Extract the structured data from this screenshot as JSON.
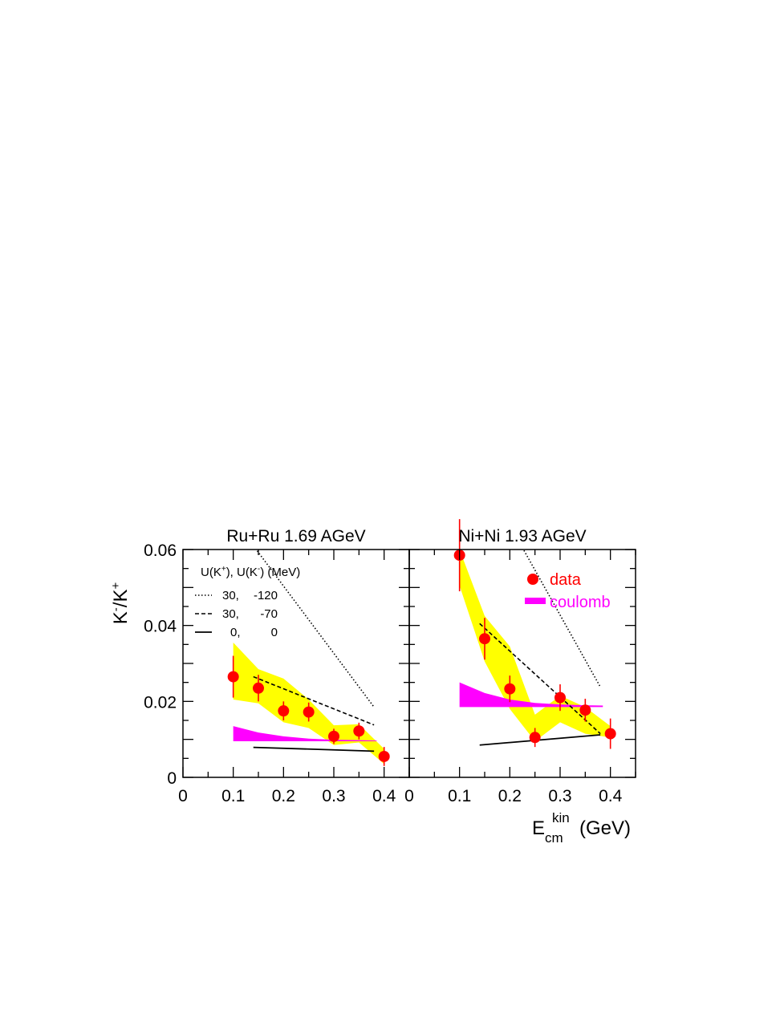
{
  "figure": {
    "ylabel": {
      "base": "K",
      "sup1": "-",
      "mid": "/K",
      "sup2": "+"
    },
    "xlabel": {
      "base": "E",
      "sub": "cm",
      "sup": "kin",
      "unit": "(GeV)"
    },
    "legend_header": {
      "p1": "U(K",
      "s1": "+",
      "p2": "), U(K",
      "s2": "-",
      "p3": ") (MeV)"
    },
    "legend_entries": [
      {
        "style": "dotted",
        "a": "30,",
        "b": "-120"
      },
      {
        "style": "dashed",
        "a": "30,",
        "b": "-70"
      },
      {
        "style": "solid",
        "a": "0,",
        "b": "0"
      }
    ],
    "legend_data_label": "data",
    "legend_coulomb_label": "coulomb"
  },
  "colors": {
    "data": "#ff0000",
    "band": "#ffff00",
    "coulomb": "#ff00ff",
    "axis": "#000000"
  },
  "chart_data": [
    {
      "type": "scatter",
      "title": "Ru+Ru 1.69 AGeV",
      "xlim": [
        0,
        0.45
      ],
      "ylim": [
        0,
        0.06
      ],
      "xticks": [
        0,
        0.1,
        0.2,
        0.3,
        0.4
      ],
      "xtick_labels": [
        "0",
        "0.1",
        "0.2",
        "0.3",
        "0.4"
      ],
      "yticks": [
        0,
        0.02,
        0.04,
        0.06
      ],
      "ytick_labels": [
        "0",
        "0.02",
        "0.04",
        "0.06"
      ],
      "series": [
        {
          "name": "data",
          "x": [
            0.1,
            0.15,
            0.2,
            0.25,
            0.3,
            0.35,
            0.4
          ],
          "y": [
            0.0265,
            0.0235,
            0.0175,
            0.0172,
            0.0108,
            0.0122,
            0.0055
          ],
          "err": [
            0.0055,
            0.0035,
            0.0025,
            0.0025,
            0.002,
            0.0022,
            0.0025
          ]
        },
        {
          "name": "30, -120",
          "style": "dotted",
          "x": [
            0.14,
            0.38
          ],
          "y": [
            0.061,
            0.0185
          ]
        },
        {
          "name": "30, -70",
          "style": "dashed",
          "x": [
            0.14,
            0.38
          ],
          "y": [
            0.0265,
            0.0138
          ]
        },
        {
          "name": "0, 0",
          "style": "solid",
          "x": [
            0.14,
            0.38
          ],
          "y": [
            0.0079,
            0.0069
          ]
        }
      ],
      "band": {
        "name": "systematic",
        "x": [
          0.1,
          0.15,
          0.2,
          0.25,
          0.3,
          0.35,
          0.4
        ],
        "upper": [
          0.0355,
          0.0285,
          0.026,
          0.0205,
          0.0137,
          0.014,
          0.0075
        ],
        "lower": [
          0.0205,
          0.0195,
          0.0145,
          0.013,
          0.0085,
          0.0092,
          0.0035
        ]
      },
      "coulomb": {
        "x": [
          0.1,
          0.15,
          0.2,
          0.25,
          0.3,
          0.35,
          0.385
        ],
        "upper": [
          0.0135,
          0.0118,
          0.0108,
          0.0102,
          0.0099,
          0.0098,
          0.0097
        ],
        "lower": [
          0.0095,
          0.0095,
          0.0095,
          0.0095,
          0.0095,
          0.0095,
          0.0095
        ]
      }
    },
    {
      "type": "scatter",
      "title": "Ni+Ni 1.93 AGeV",
      "xlim": [
        0,
        0.45
      ],
      "ylim": [
        0,
        0.06
      ],
      "xticks": [
        0,
        0.1,
        0.2,
        0.3,
        0.4
      ],
      "xtick_labels": [
        "0",
        "0.1",
        "0.2",
        "0.3",
        "0.4"
      ],
      "series": [
        {
          "name": "data",
          "x": [
            0.1,
            0.15,
            0.2,
            0.25,
            0.3,
            0.35,
            0.4
          ],
          "y": [
            0.0585,
            0.0365,
            0.0233,
            0.0105,
            0.021,
            0.0177,
            0.0115
          ],
          "err": [
            0.0095,
            0.0055,
            0.0035,
            0.0025,
            0.0035,
            0.003,
            0.004
          ]
        },
        {
          "name": "30, -120",
          "style": "dotted",
          "x": [
            0.225,
            0.38
          ],
          "y": [
            0.0605,
            0.0238
          ]
        },
        {
          "name": "30, -70",
          "style": "dashed",
          "x": [
            0.14,
            0.38
          ],
          "y": [
            0.0405,
            0.0115
          ]
        },
        {
          "name": "0, 0",
          "style": "solid",
          "x": [
            0.14,
            0.38
          ],
          "y": [
            0.0085,
            0.0112
          ]
        }
      ],
      "band": {
        "name": "systematic",
        "x": [
          0.1,
          0.15,
          0.2,
          0.25,
          0.3,
          0.35,
          0.4
        ],
        "upper": [
          0.06,
          0.0425,
          0.0345,
          0.0165,
          0.0215,
          0.0185,
          0.0135
        ],
        "lower": [
          0.0505,
          0.0305,
          0.018,
          0.0095,
          0.0145,
          0.0115,
          0.0105
        ]
      },
      "coulomb": {
        "x": [
          0.1,
          0.15,
          0.2,
          0.25,
          0.3,
          0.35,
          0.385
        ],
        "upper": [
          0.025,
          0.0222,
          0.0205,
          0.0196,
          0.0192,
          0.019,
          0.0189
        ],
        "lower": [
          0.0185,
          0.0185,
          0.0185,
          0.0185,
          0.0185,
          0.0185,
          0.0185
        ]
      }
    }
  ]
}
